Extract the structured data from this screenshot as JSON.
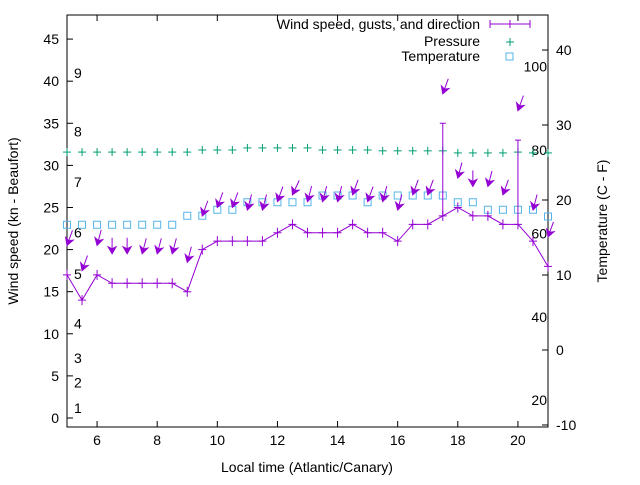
{
  "chart_data": {
    "type": "line",
    "title": "",
    "xlabel": "Local time (Atlantic/Canary)",
    "ylabel": "Wind speed (kn - Beaufort)",
    "y2label": "Temperature (C - F)",
    "xlim": [
      5,
      21
    ],
    "ylim": [
      -1.07,
      47.86
    ],
    "y2lim": [
      -10.27,
      44.67
    ],
    "xticks": [
      6,
      8,
      10,
      12,
      14,
      16,
      18,
      20
    ],
    "yticks": [
      0,
      5,
      10,
      15,
      20,
      25,
      30,
      35,
      40,
      45
    ],
    "y2ticks": [
      -10,
      0,
      10,
      20,
      30,
      40
    ],
    "beaufort_labels": [
      {
        "label": "1",
        "kn": 1.2
      },
      {
        "label": "2",
        "kn": 4.2
      },
      {
        "label": "3",
        "kn": 7.1
      },
      {
        "label": "4",
        "kn": 11.2
      },
      {
        "label": "5",
        "kn": 17.1
      },
      {
        "label": "6",
        "kn": 22
      },
      {
        "label": "7",
        "kn": 28
      },
      {
        "label": "8",
        "kn": 34
      },
      {
        "label": "9",
        "kn": 41
      }
    ],
    "fahrenheit_labels": [
      {
        "label": "20",
        "f": 20
      },
      {
        "label": "40",
        "f": 40
      },
      {
        "label": "60",
        "f": 60
      },
      {
        "label": "80",
        "f": 80
      },
      {
        "label": "100",
        "f": 100
      }
    ],
    "legend_position": "top-right",
    "x": [
      5,
      5.5,
      6,
      6.5,
      7,
      7.5,
      8,
      8.5,
      9,
      9.5,
      10,
      10.5,
      11,
      11.5,
      12,
      12.5,
      13,
      13.5,
      14,
      14.5,
      15,
      15.5,
      16,
      16.5,
      17,
      17.5,
      18,
      18.5,
      19,
      19.5,
      20,
      20.5,
      21
    ],
    "series": [
      {
        "name": "Wind speed, gusts, and direction",
        "color": "#9400d3",
        "values": [
          17,
          14,
          17,
          16,
          16,
          16,
          16,
          16,
          15,
          20,
          21,
          21,
          21,
          21,
          22,
          23,
          22,
          22,
          22,
          23,
          22,
          22,
          21,
          23,
          23,
          24,
          25,
          24,
          24,
          23,
          23,
          21,
          18
        ],
        "gust_bar_high": [
          null,
          null,
          null,
          null,
          null,
          null,
          null,
          null,
          null,
          null,
          null,
          null,
          null,
          null,
          null,
          null,
          null,
          null,
          null,
          null,
          null,
          null,
          null,
          null,
          null,
          35,
          null,
          null,
          null,
          null,
          33,
          null,
          null
        ],
        "gusts": [
          20.5,
          17.5,
          20.5,
          19.5,
          19.5,
          19.5,
          19.5,
          19.5,
          18.5,
          24,
          25,
          25,
          24.7,
          24.7,
          25.7,
          26.5,
          25.7,
          25.7,
          25.7,
          26.5,
          25.7,
          25.7,
          24.7,
          26.5,
          26.5,
          38.5,
          28.5,
          27.5,
          27.5,
          26.5,
          36.5,
          24.7,
          21.5
        ],
        "direction_deg": [
          20,
          20,
          15,
          0,
          0,
          15,
          15,
          15,
          15,
          20,
          20,
          20,
          15,
          15,
          20,
          25,
          15,
          15,
          15,
          20,
          20,
          15,
          15,
          20,
          20,
          20,
          15,
          0,
          15,
          20,
          20,
          15,
          20
        ]
      },
      {
        "name": "Pressure",
        "color": "#009e73",
        "values": [
          79.5,
          79.5,
          79.5,
          79.5,
          79.5,
          79.5,
          79.5,
          79.5,
          79.5,
          80,
          80,
          80,
          80.5,
          80.5,
          80.5,
          80.5,
          80.5,
          80,
          80,
          80,
          80,
          79.8,
          79.8,
          79.8,
          79.8,
          79.8,
          79.3,
          79.3,
          79.3,
          79.3,
          79.5,
          79.3,
          79.3
        ]
      },
      {
        "name": "Temperature",
        "color": "#56b4e9",
        "values": [
          16.7,
          16.7,
          16.7,
          16.7,
          16.7,
          16.7,
          16.7,
          16.7,
          17.9,
          17.9,
          18.7,
          18.7,
          19.7,
          19.7,
          19.7,
          19.7,
          19.7,
          20.6,
          20.6,
          20.6,
          19.7,
          20.6,
          20.6,
          20.6,
          20.6,
          20.6,
          19.7,
          19.7,
          18.7,
          18.7,
          18.7,
          18.7,
          17.8
        ]
      }
    ]
  }
}
